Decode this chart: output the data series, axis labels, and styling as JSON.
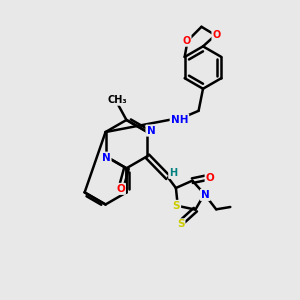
{
  "background_color": "#e8e8e8",
  "bond_color": "#000000",
  "atom_colors": {
    "N": "#0000ff",
    "O": "#ff0000",
    "S": "#cccc00",
    "C": "#000000",
    "H": "#008080"
  }
}
